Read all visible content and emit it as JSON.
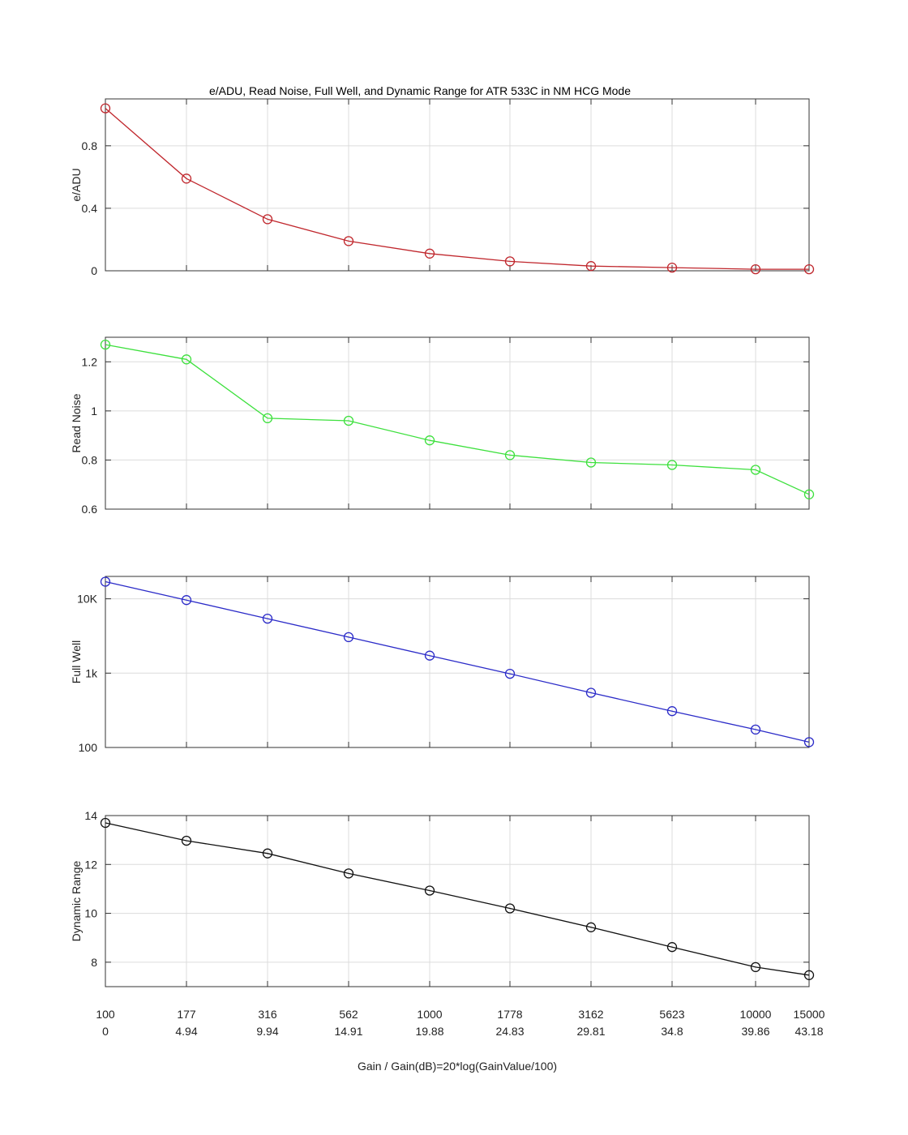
{
  "figure": {
    "title": "e/ADU, Read Noise, Full Well, and Dynamic Range for  ATR 533C  in NM HCG Mode",
    "xlabel": "Gain / Gain(dB)=20*log(GainValue/100)",
    "x_tick_labels_gain": [
      "100",
      "177",
      "316",
      "562",
      "1000",
      "1778",
      "3162",
      "5623",
      "10000",
      "15000"
    ],
    "x_tick_labels_db": [
      "0",
      "4.94",
      "9.94",
      "14.91",
      "19.88",
      "24.83",
      "29.81",
      "34.8",
      "39.86",
      "43.18"
    ]
  },
  "chart_data": [
    {
      "type": "line",
      "ylabel": "e/ADU",
      "color": "#c0272d",
      "marker": "circle",
      "x": [
        100,
        177,
        316,
        562,
        1000,
        1778,
        3162,
        5623,
        10000,
        15000
      ],
      "values": [
        1.04,
        0.59,
        0.33,
        0.19,
        0.11,
        0.06,
        0.03,
        0.02,
        0.01,
        0.01
      ],
      "ylim": [
        0,
        1.1
      ],
      "y_ticks": [
        0,
        0.4,
        0.8
      ],
      "y_tick_labels": [
        "0",
        "0.4",
        "0.8"
      ],
      "grid": true
    },
    {
      "type": "line",
      "ylabel": "Read Noise",
      "color": "#3de03d",
      "marker": "circle",
      "x": [
        100,
        177,
        316,
        562,
        1000,
        1778,
        3162,
        5623,
        10000,
        15000
      ],
      "values": [
        1.27,
        1.21,
        0.97,
        0.96,
        0.88,
        0.82,
        0.79,
        0.78,
        0.76,
        0.66
      ],
      "ylim": [
        0.6,
        1.3
      ],
      "y_ticks": [
        0.6,
        0.8,
        1.0,
        1.2
      ],
      "y_tick_labels": [
        "0.6",
        "0.8",
        "1",
        "1.2"
      ],
      "grid": true
    },
    {
      "type": "line",
      "ylabel": "Full Well",
      "color": "#2b2bc8",
      "marker": "circle",
      "yscale": "log",
      "x": [
        100,
        177,
        316,
        562,
        1000,
        1778,
        3162,
        5623,
        10000,
        15000
      ],
      "values": [
        17000,
        9600,
        5400,
        3050,
        1720,
        980,
        545,
        308,
        174,
        118
      ],
      "ylim": [
        100,
        20000
      ],
      "y_ticks": [
        100,
        1000,
        10000
      ],
      "y_tick_labels": [
        "100",
        "1k",
        "10K"
      ],
      "grid": true
    },
    {
      "type": "line",
      "ylabel": "Dynamic Range",
      "color": "#111111",
      "marker": "circle",
      "x": [
        100,
        177,
        316,
        562,
        1000,
        1778,
        3162,
        5623,
        10000,
        15000
      ],
      "values": [
        13.7,
        12.97,
        12.45,
        11.63,
        10.93,
        10.2,
        9.43,
        8.62,
        7.8,
        7.47
      ],
      "ylim": [
        7,
        14
      ],
      "y_ticks": [
        8,
        10,
        12,
        14
      ],
      "y_tick_labels": [
        "8",
        "10",
        "12",
        "14"
      ],
      "grid": true
    }
  ]
}
